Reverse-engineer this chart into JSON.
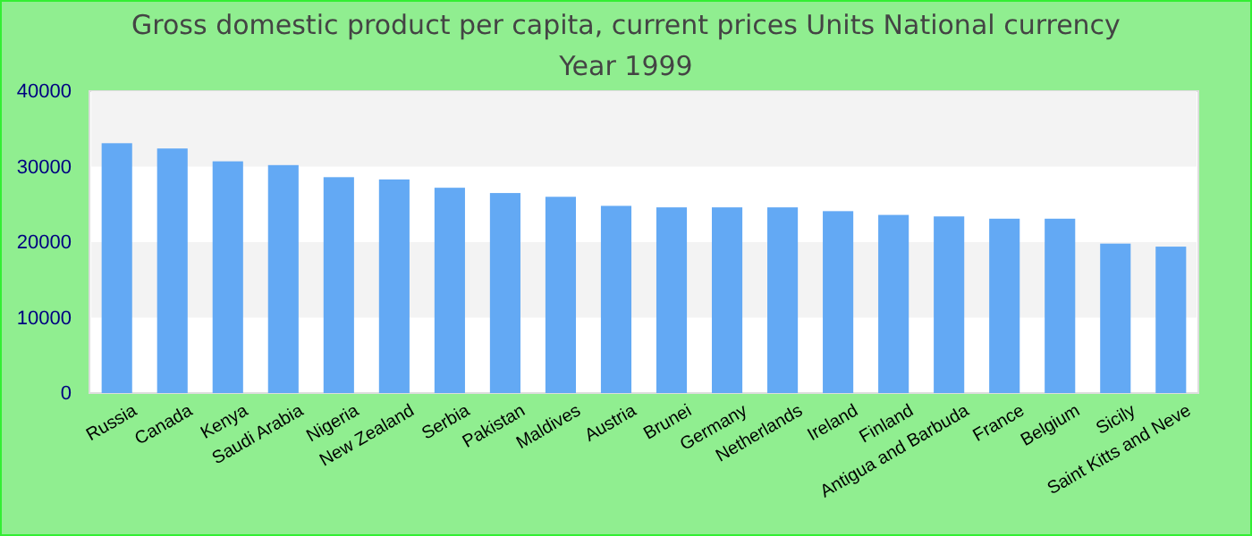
{
  "chart_data": {
    "type": "bar",
    "title": "Gross domestic product per capita, current prices Units National currency",
    "subtitle": "Year 1999",
    "categories": [
      "Russia",
      "Canada",
      "Kenya",
      "Saudi Arabia",
      "Nigeria",
      "New Zealand",
      "Serbia",
      "Pakistan",
      "Maldives",
      "Austria",
      "Brunei",
      "Germany",
      "Netherlands",
      "Ireland",
      "Finland",
      "Antigua and Barbuda",
      "France",
      "Belgium",
      "Sicily",
      "Saint Kitts and Neve"
    ],
    "values": [
      33100,
      32400,
      30700,
      30200,
      28600,
      28300,
      27200,
      26500,
      26000,
      24800,
      24600,
      24600,
      24600,
      24100,
      23600,
      23400,
      23100,
      23100,
      19800,
      19400
    ],
    "color": "#63a9f4",
    "ylim": [
      0,
      40000
    ],
    "yticks": [
      0,
      10000,
      20000,
      30000,
      40000
    ]
  }
}
